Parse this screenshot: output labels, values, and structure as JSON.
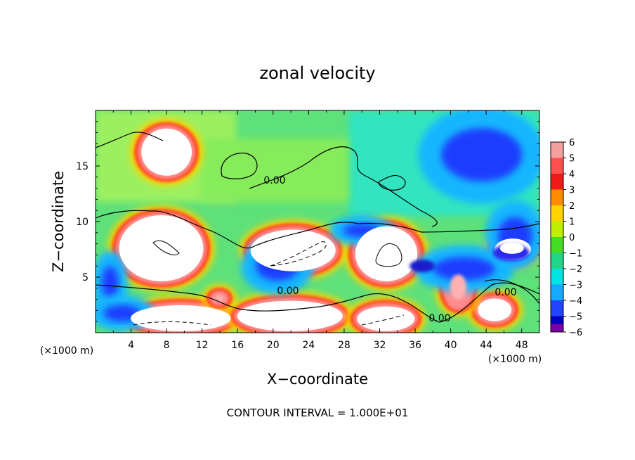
{
  "chart_data": {
    "type": "heatmap",
    "title": "zonal velocity",
    "xlabel": "X−coordinate",
    "ylabel": "Z−coordinate",
    "x_unit_label": "(×1000 m)",
    "y_unit_label": "(×1000 m)",
    "xlim": [
      0,
      50
    ],
    "ylim": [
      0,
      20
    ],
    "x_ticks": [
      4,
      8,
      12,
      16,
      20,
      24,
      28,
      32,
      36,
      40,
      44,
      48
    ],
    "x_tick_labels": [
      "4",
      "8",
      "12",
      "16",
      "20",
      "24",
      "28",
      "32",
      "36",
      "40",
      "44",
      "48"
    ],
    "y_ticks": [
      5,
      10,
      15
    ],
    "y_tick_labels": [
      "5",
      "10",
      "15"
    ],
    "colorbar": {
      "levels": [
        6,
        5,
        4,
        3,
        2,
        1,
        0,
        -1,
        -2,
        -3,
        -4,
        -5,
        -6
      ],
      "labels": [
        "6",
        "5",
        "4",
        "3",
        "2",
        "1",
        "0",
        "−1",
        "−2",
        "−3",
        "−4",
        "−5",
        "−6"
      ],
      "colors": [
        "#f5a0a0",
        "#ff5050",
        "#f01818",
        "#ff8c00",
        "#ffd400",
        "#c0f000",
        "#44dd22",
        "#22d488",
        "#00e4e4",
        "#14aaff",
        "#2244ff",
        "#0000c0",
        "#7a00aa"
      ]
    },
    "contour_labels": [
      {
        "text": "0.00",
        "x": 20.2,
        "z": 13.4
      },
      {
        "text": "0.00",
        "x": 21.8,
        "z": 3.7
      },
      {
        "text": "0.00",
        "x": 45.6,
        "z": 3.4
      },
      {
        "text": "0.00",
        "x": 38.8,
        "z": 1.5
      }
    ],
    "features": [
      {
        "type": "positive",
        "x": [
          2.5,
          12.3
        ],
        "z": [
          4.5,
          10.7
        ]
      },
      {
        "type": "positive",
        "x": [
          17.3,
          27.2
        ],
        "z": [
          5.4,
          9.4
        ]
      },
      {
        "type": "positive",
        "x": [
          29.1,
          36.4
        ],
        "z": [
          4.5,
          9.7
        ]
      },
      {
        "type": "positive",
        "x": [
          44.8,
          49.2
        ],
        "z": [
          6.4,
          8.6
        ]
      },
      {
        "type": "positive",
        "x": [
          3.8,
          15.4
        ],
        "z": [
          0,
          2.6
        ]
      },
      {
        "type": "positive",
        "x": [
          15.8,
          28.0
        ],
        "z": [
          0,
          3.0
        ]
      },
      {
        "type": "positive",
        "x": [
          29.3,
          36.1
        ],
        "z": [
          0,
          2.5
        ]
      },
      {
        "type": "positive",
        "x": [
          13.1,
          14.8
        ],
        "z": [
          2.6,
          3.6
        ]
      },
      {
        "type": "positive",
        "x": [
          42.9,
          47.0
        ],
        "z": [
          0.9,
          3.2
        ]
      },
      {
        "type": "positive",
        "x": [
          39.3,
          42.4
        ],
        "z": [
          2.2,
          6.0
        ]
      },
      {
        "type": "negative",
        "x": [
          36.5,
          46.5
        ],
        "z": [
          4.0,
          7.5
        ]
      },
      {
        "type": "negative",
        "x": [
          0.3,
          3.0
        ],
        "z": [
          2.0,
          7.0
        ]
      },
      {
        "type": "negative",
        "x": [
          17.0,
          24.0
        ],
        "z": [
          3.8,
          8.2
        ]
      },
      {
        "type": "negative",
        "x": [
          27.0,
          33.0
        ],
        "z": [
          8.2,
          10.2
        ]
      },
      {
        "type": "negative",
        "x": [
          44.5,
          50.0
        ],
        "z": [
          6.0,
          11.5
        ]
      },
      {
        "type": "negative",
        "x": [
          0,
          6.0
        ],
        "z": [
          0.5,
          3.0
        ]
      },
      {
        "type": "positive",
        "x": [
          5.0,
          11.0
        ],
        "z": [
          14.0,
          18.5
        ]
      },
      {
        "type": "negative",
        "x": [
          37.0,
          50.0
        ],
        "z": [
          12.0,
          20.0
        ]
      }
    ]
  },
  "footer": "CONTOUR INTERVAL = 1.000E+01"
}
